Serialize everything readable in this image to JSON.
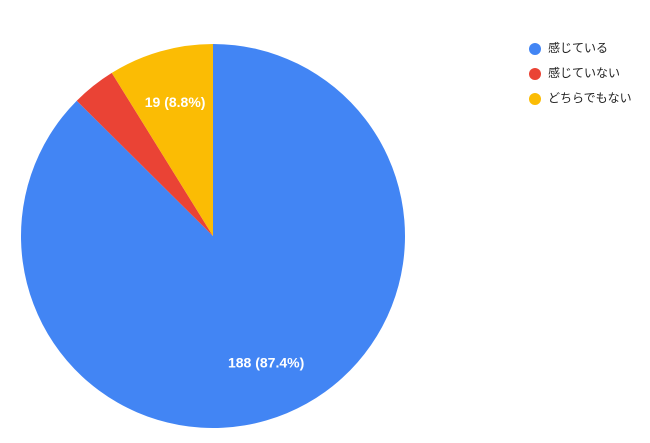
{
  "chart_data": {
    "type": "pie",
    "categories": [
      "感じている",
      "感じていない",
      "どちらでもない"
    ],
    "values": [
      188,
      8,
      19
    ],
    "value_labels": [
      "188 (87.4%)",
      null,
      "19 (8.8%)"
    ],
    "colors": [
      "#4285f4",
      "#ea4335",
      "#fbbc04"
    ],
    "legend": "right"
  }
}
